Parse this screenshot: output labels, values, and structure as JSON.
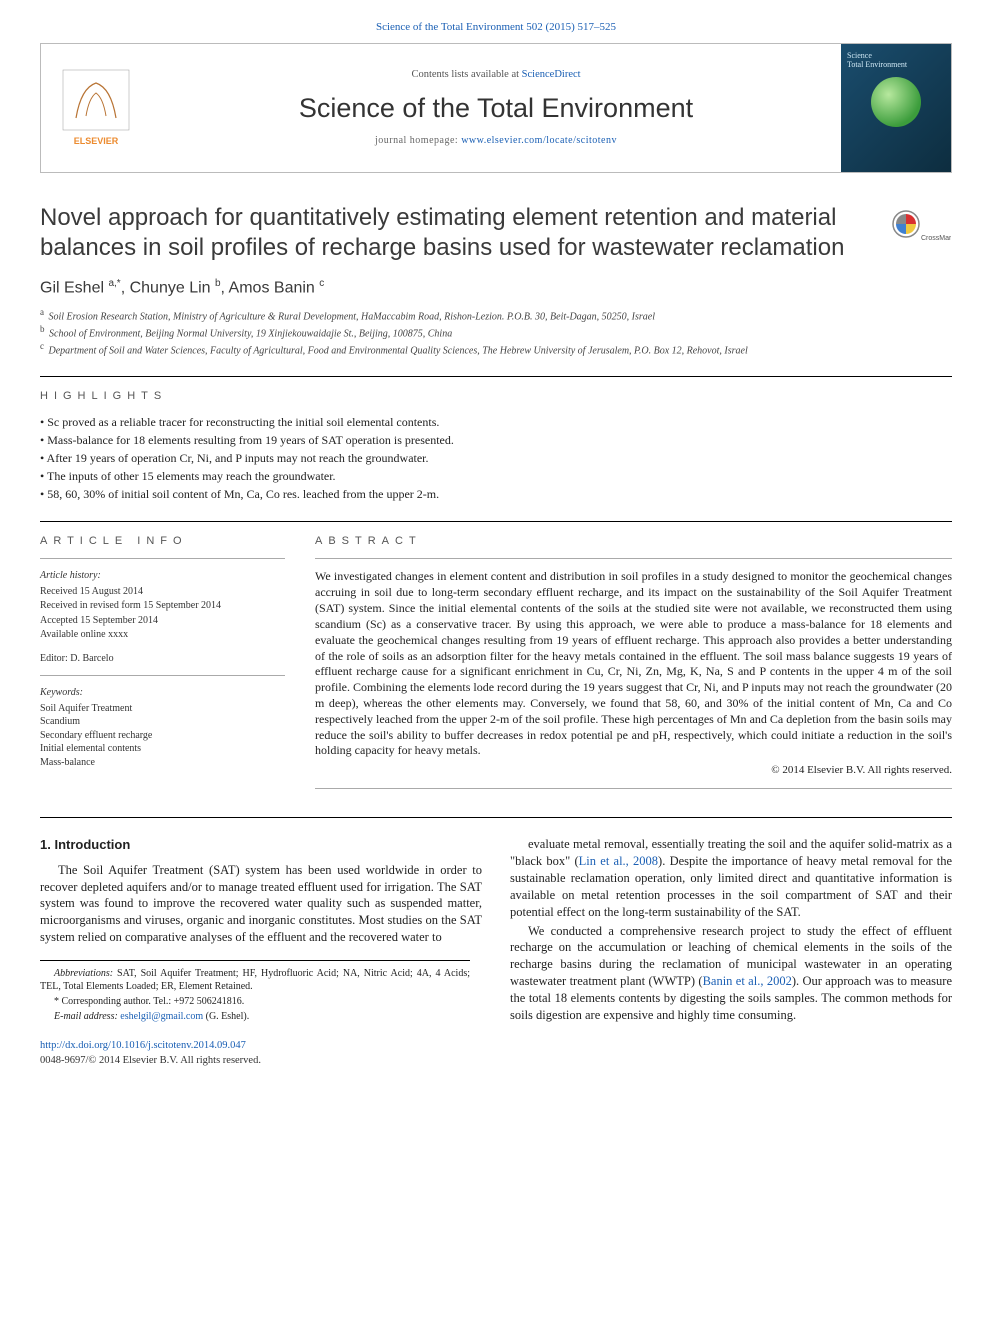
{
  "top_link_prefix": "Science of the Total Environment 502 (2015) 517–525",
  "masthead": {
    "contents_prefix": "Contents lists available at ",
    "contents_link": "ScienceDirect",
    "journal_title": "Science of the Total Environment",
    "homepage_label": "journal homepage: ",
    "homepage_url": "www.elsevier.com/locate/scitotenv",
    "cover_text1": "Science",
    "cover_text2": "Total Environment"
  },
  "paper_title": "Novel approach for quantitatively estimating element retention and material balances in soil profiles of recharge basins used for wastewater reclamation",
  "crossmark_label": "CrossMark",
  "authors_html": "Gil Eshel <sup>a,*</sup>, Chunye Lin <sup>b</sup>, Amos Banin <sup>c</sup>",
  "affiliations": [
    {
      "sup": "a",
      "text": "Soil Erosion Research Station, Ministry of Agriculture & Rural Development, HaMaccabim Road, Rishon-Lezion. P.O.B. 30, Beit-Dagan, 50250, Israel"
    },
    {
      "sup": "b",
      "text": "School of Environment, Beijing Normal University, 19 Xinjiekouwaidajie St., Beijing, 100875, China"
    },
    {
      "sup": "c",
      "text": "Department of Soil and Water Sciences, Faculty of Agricultural, Food and Environmental Quality Sciences, The Hebrew University of Jerusalem, P.O. Box 12, Rehovot, Israel"
    }
  ],
  "highlights_label": "HIGHLIGHTS",
  "highlights": [
    "Sc proved as a reliable tracer for reconstructing the initial soil elemental contents.",
    "Mass-balance for 18 elements resulting from 19 years of SAT operation is presented.",
    "After 19 years of operation Cr, Ni, and P inputs may not reach the groundwater.",
    "The inputs of other 15 elements may reach the groundwater.",
    "58, 60, 30% of initial soil content of Mn, Ca, Co res. leached from the upper 2-m."
  ],
  "article_info_label": "ARTICLE INFO",
  "abstract_label": "ABSTRACT",
  "history": {
    "hdr": "Article history:",
    "received": "Received 15 August 2014",
    "revised": "Received in revised form 15 September 2014",
    "accepted": "Accepted 15 September 2014",
    "online": "Available online xxxx"
  },
  "editor": "Editor: D. Barcelo",
  "keywords_hdr": "Keywords:",
  "keywords": [
    "Soil Aquifer Treatment",
    "Scandium",
    "Secondary effluent recharge",
    "Initial elemental contents",
    "Mass-balance"
  ],
  "abstract": "We investigated changes in element content and distribution in soil profiles in a study designed to monitor the geochemical changes accruing in soil due to long-term secondary effluent recharge, and its impact on the sustainability of the Soil Aquifer Treatment (SAT) system. Since the initial elemental contents of the soils at the studied site were not available, we reconstructed them using scandium (Sc) as a conservative tracer. By using this approach, we were able to produce a mass-balance for 18 elements and evaluate the geochemical changes resulting from 19 years of effluent recharge. This approach also provides a better understanding of the role of soils as an adsorption filter for the heavy metals contained in the effluent. The soil mass balance suggests 19 years of effluent recharge cause for a significant enrichment in Cu, Cr, Ni, Zn, Mg, K, Na, S and P contents in the upper 4 m of the soil profile. Combining the elements lode record during the 19 years suggest that Cr, Ni, and P inputs may not reach the groundwater (20 m deep), whereas the other elements may. Conversely, we found that 58, 60, and 30% of the initial content of Mn, Ca and Co respectively leached from the upper 2-m of the soil profile. These high percentages of Mn and Ca depletion from the basin soils may reduce the soil's ability to buffer decreases in redox potential pe and pH, respectively, which could initiate a reduction in the soil's holding capacity for heavy metals.",
  "abstract_copyright": "© 2014 Elsevier B.V. All rights reserved.",
  "intro_heading": "1. Introduction",
  "intro_p1": "The Soil Aquifer Treatment (SAT) system has been used worldwide in order to recover depleted aquifers and/or to manage treated effluent used for irrigation. The SAT system was found to improve the recovered water quality such as suspended matter, microorganisms and viruses, organic and inorganic constitutes. Most studies on the SAT system relied on comparative analyses of the effluent and the recovered water to",
  "intro_p2_a": "evaluate metal removal, essentially treating the soil and the aquifer solid-matrix as a \"black box\" (",
  "intro_p2_link": "Lin et al., 2008",
  "intro_p2_b": "). Despite the importance of heavy metal removal for the sustainable reclamation operation, only limited direct and quantitative information is available on metal retention processes in the soil compartment of SAT and their potential effect on the long-term sustainability of the SAT.",
  "intro_p3_a": "We conducted a comprehensive research project to study the effect of effluent recharge on the accumulation or leaching of chemical elements in the soils of the recharge basins during the reclamation of municipal wastewater in an operating wastewater treatment plant (WWTP) (",
  "intro_p3_link": "Banin et al., 2002",
  "intro_p3_b": "). Our approach was to measure the total 18 elements contents by digesting the soils samples. The common methods for soils digestion are expensive and highly time consuming.",
  "footnotes": {
    "abbrev_label": "Abbreviations:",
    "abbrev_text": " SAT, Soil Aquifer Treatment; HF, Hydrofluoric Acid; NA, Nitric Acid; 4A, 4 Acids; TEL, Total Elements Loaded; ER, Element Retained.",
    "corr": "* Corresponding author. Tel.: +972 506241816.",
    "email_label": "E-mail address: ",
    "email": "eshelgil@gmail.com",
    "email_suffix": " (G. Eshel)."
  },
  "doi": {
    "url": "http://dx.doi.org/10.1016/j.scitotenv.2014.09.047",
    "line2": "0048-9697/© 2014 Elsevier B.V. All rights reserved."
  },
  "colors": {
    "link": "#1a5fb4",
    "text": "#222222",
    "rule": "#000000",
    "masthead_border": "#bbbbbb",
    "cover_bg_a": "#1a4d6e",
    "cover_bg_b": "#0d2d3f",
    "elsevier_orange": "#ec8b2f"
  }
}
